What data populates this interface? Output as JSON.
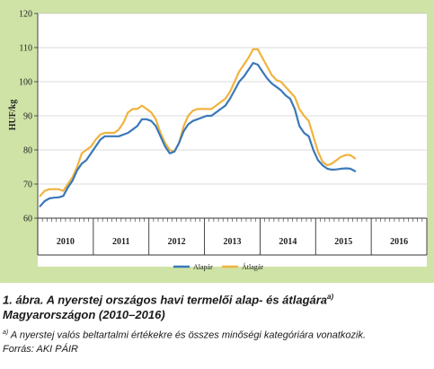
{
  "chart_data": {
    "type": "line",
    "ylabel": "HUF/kg",
    "ylim": [
      60,
      120
    ],
    "y_ticks": [
      60,
      70,
      80,
      90,
      100,
      110,
      120
    ],
    "years": [
      "2010",
      "2011",
      "2012",
      "2013",
      "2014",
      "2015",
      "2016"
    ],
    "start": "2010-01",
    "grid": "horizontal",
    "legend_position": "bottom-center",
    "series": [
      {
        "name": "Alapár",
        "color": "#3a78b9",
        "values": [
          63.5,
          65,
          65.8,
          66,
          66.1,
          66.5,
          69,
          71,
          74,
          76,
          77,
          79,
          81,
          83,
          84,
          84,
          84,
          84,
          84.5,
          85,
          86,
          87,
          89,
          89,
          88.5,
          87,
          84,
          81,
          79,
          79.5,
          82,
          85.5,
          87.5,
          88.5,
          89,
          89.5,
          90,
          90,
          91,
          92,
          93,
          95,
          97.5,
          100,
          101.5,
          103.5,
          105.5,
          105,
          103,
          101,
          99.5,
          98.5,
          97.5,
          96,
          95,
          92,
          87,
          85,
          84,
          80,
          77,
          75.5,
          74.5,
          74.2,
          74.3,
          74.5,
          74.6,
          74.5,
          73.8
        ],
        "labels_note": "monthly values from January 2010"
      },
      {
        "name": "Átlagár",
        "color": "#f1b33f",
        "values": [
          66.5,
          68,
          68.5,
          68.5,
          68.5,
          68,
          70,
          72,
          75,
          79,
          80,
          81,
          83,
          84.5,
          85,
          85,
          85,
          86,
          88,
          91,
          92,
          92,
          93,
          92,
          91,
          89,
          85,
          82,
          80,
          79.5,
          82,
          87,
          90,
          91.5,
          92,
          92,
          92,
          92,
          93,
          94,
          95,
          97,
          100,
          103,
          105,
          107,
          109.5,
          109.5,
          107,
          104.5,
          102,
          100.5,
          100,
          98.5,
          97,
          95.5,
          92,
          90,
          88.5,
          84,
          79.5,
          76.5,
          75.5,
          76,
          77,
          78,
          78.5,
          78.5,
          77.5
        ]
      }
    ]
  },
  "caption": {
    "figure_label": "1. ábra.",
    "title_main": "A nyerstej országos havi termelői alap- és átlagára",
    "title_sup": "a)",
    "title_line2": "Magyarországon (2010–2016)",
    "note_marker": "a)",
    "note_text": "A nyerstej valós beltartalmi értékekre és összes minőségi kategóriára vonatkozik.",
    "source": "Forrás: AKI PÁIR"
  },
  "colors": {
    "frame_background": "#cfe3a6",
    "plot_background": "#ffffff"
  }
}
